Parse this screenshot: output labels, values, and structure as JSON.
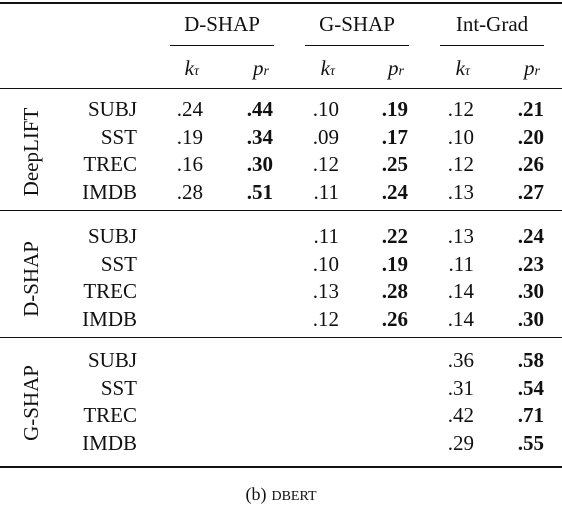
{
  "table": {
    "column_groups": [
      "D-SHAP",
      "G-SHAP",
      "Int-Grad"
    ],
    "subheaders": [
      {
        "base": "k",
        "sub": "τ"
      },
      {
        "base": "p",
        "sub": "r"
      }
    ],
    "row_groups": [
      {
        "label": "DeepLIFT",
        "rows": [
          {
            "label": "SUBJ",
            "cells": [
              ".24",
              ".44",
              ".10",
              ".19",
              ".12",
              ".21"
            ]
          },
          {
            "label": "SST",
            "cells": [
              ".19",
              ".34",
              ".09",
              ".17",
              ".10",
              ".20"
            ]
          },
          {
            "label": "TREC",
            "cells": [
              ".16",
              ".30",
              ".12",
              ".25",
              ".12",
              ".26"
            ]
          },
          {
            "label": "IMDB",
            "cells": [
              ".28",
              ".51",
              ".11",
              ".24",
              ".13",
              ".27"
            ]
          }
        ]
      },
      {
        "label": "D-SHAP",
        "rows": [
          {
            "label": "SUBJ",
            "cells": [
              null,
              null,
              ".11",
              ".22",
              ".13",
              ".24"
            ]
          },
          {
            "label": "SST",
            "cells": [
              null,
              null,
              ".10",
              ".19",
              ".11",
              ".23"
            ]
          },
          {
            "label": "TREC",
            "cells": [
              null,
              null,
              ".13",
              ".28",
              ".14",
              ".30"
            ]
          },
          {
            "label": "IMDB",
            "cells": [
              null,
              null,
              ".12",
              ".26",
              ".14",
              ".30"
            ]
          }
        ]
      },
      {
        "label": "G-SHAP",
        "rows": [
          {
            "label": "SUBJ",
            "cells": [
              null,
              null,
              null,
              null,
              ".36",
              ".58"
            ]
          },
          {
            "label": "SST",
            "cells": [
              null,
              null,
              null,
              null,
              ".31",
              ".54"
            ]
          },
          {
            "label": "TREC",
            "cells": [
              null,
              null,
              null,
              null,
              ".42",
              ".71"
            ]
          },
          {
            "label": "IMDB",
            "cells": [
              null,
              null,
              null,
              null,
              ".29",
              ".55"
            ]
          }
        ]
      }
    ],
    "caption": {
      "label": "(b)",
      "model": "DBERT"
    }
  }
}
